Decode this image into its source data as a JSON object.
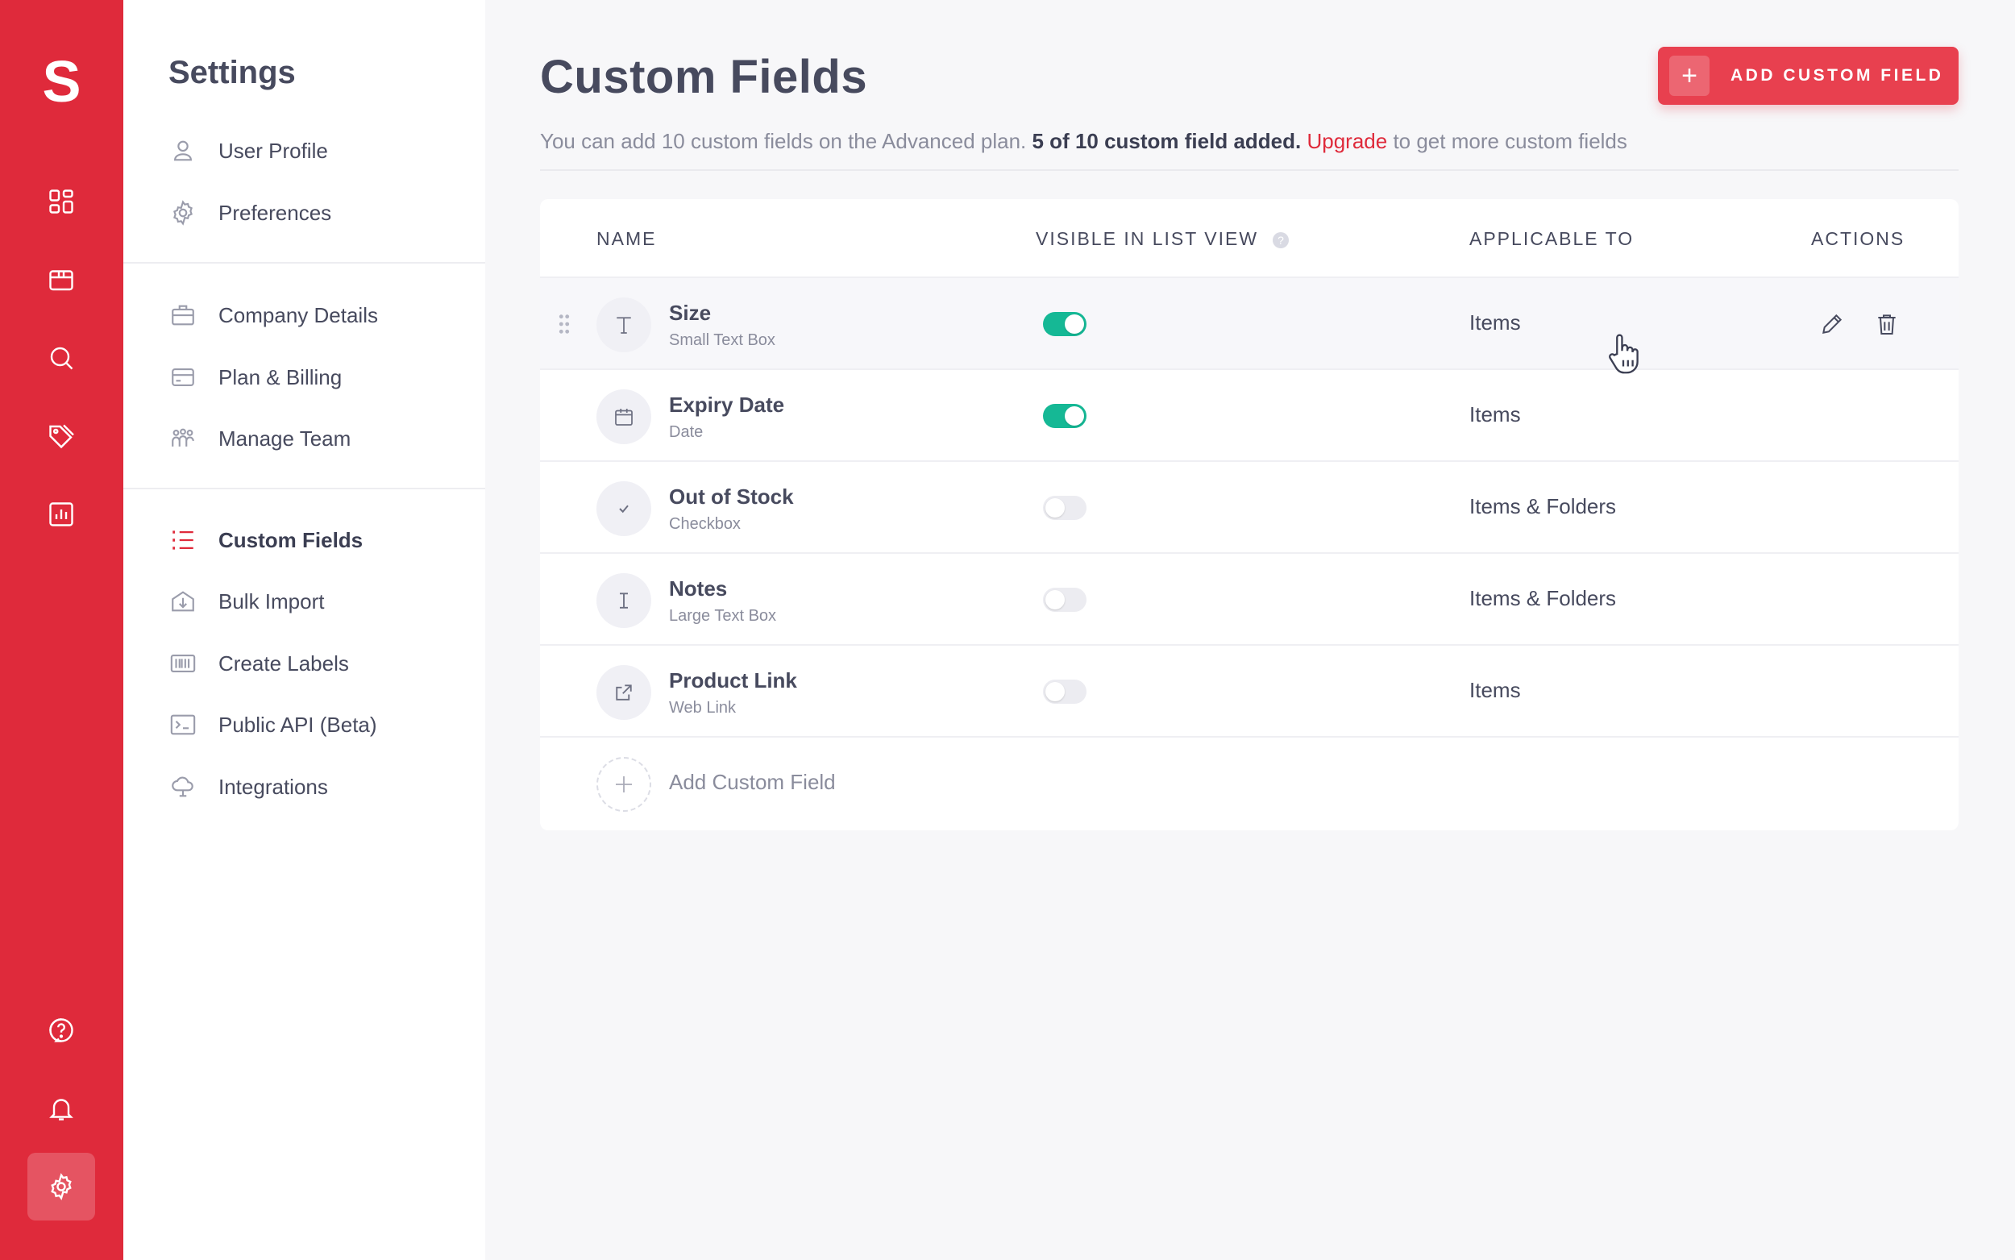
{
  "app": {
    "logo": "S"
  },
  "rail": {
    "items": [
      {
        "icon": "dashboard-icon"
      },
      {
        "icon": "box-icon"
      },
      {
        "icon": "search-icon"
      },
      {
        "icon": "tags-icon"
      },
      {
        "icon": "reports-icon"
      },
      {
        "icon": "help-icon"
      },
      {
        "icon": "bell-icon"
      },
      {
        "icon": "gear-icon",
        "active": true
      }
    ]
  },
  "settings": {
    "title": "Settings",
    "group1": [
      {
        "label": "User Profile",
        "icon": "user-icon"
      },
      {
        "label": "Preferences",
        "icon": "gear-icon"
      }
    ],
    "group2": [
      {
        "label": "Company Details",
        "icon": "briefcase-icon"
      },
      {
        "label": "Plan & Billing",
        "icon": "credit-card-icon"
      },
      {
        "label": "Manage Team",
        "icon": "team-icon"
      }
    ],
    "group3": [
      {
        "label": "Custom Fields",
        "icon": "list-icon",
        "active": true
      },
      {
        "label": "Bulk Import",
        "icon": "import-icon"
      },
      {
        "label": "Create Labels",
        "icon": "barcode-icon"
      },
      {
        "label": "Public API (Beta)",
        "icon": "terminal-icon"
      },
      {
        "label": "Integrations",
        "icon": "cloud-icon"
      }
    ]
  },
  "main": {
    "title": "Custom Fields",
    "add_button": "ADD CUSTOM FIELD",
    "subtitle": {
      "part1": "You can add 10 custom fields on the Advanced plan.",
      "bold": "5 of 10 custom field added.",
      "link": "Upgrade",
      "part2": "to get more custom fields"
    }
  },
  "table": {
    "headers": {
      "name": "NAME",
      "visible": "VISIBLE IN LIST VIEW",
      "applicable": "APPLICABLE TO",
      "actions": "ACTIONS"
    },
    "rows": [
      {
        "name": "Size",
        "type": "Small Text Box",
        "visible": true,
        "applicable": "Items",
        "icon": "text-icon"
      },
      {
        "name": "Expiry Date",
        "type": "Date",
        "visible": true,
        "applicable": "Items",
        "icon": "calendar-icon"
      },
      {
        "name": "Out of Stock",
        "type": "Checkbox",
        "visible": false,
        "applicable": "Items & Folders",
        "icon": "check-icon"
      },
      {
        "name": "Notes",
        "type": "Large Text Box",
        "visible": false,
        "applicable": "Items & Folders",
        "icon": "text-cursor-icon"
      },
      {
        "name": "Product Link",
        "type": "Web Link",
        "visible": false,
        "applicable": "Items",
        "icon": "external-link-icon"
      }
    ],
    "add_row_label": "Add Custom Field"
  },
  "colors": {
    "brand": "#df2a3b",
    "toggle_on": "#15b895",
    "text": "#474a5e",
    "muted": "#8a8c9c"
  }
}
